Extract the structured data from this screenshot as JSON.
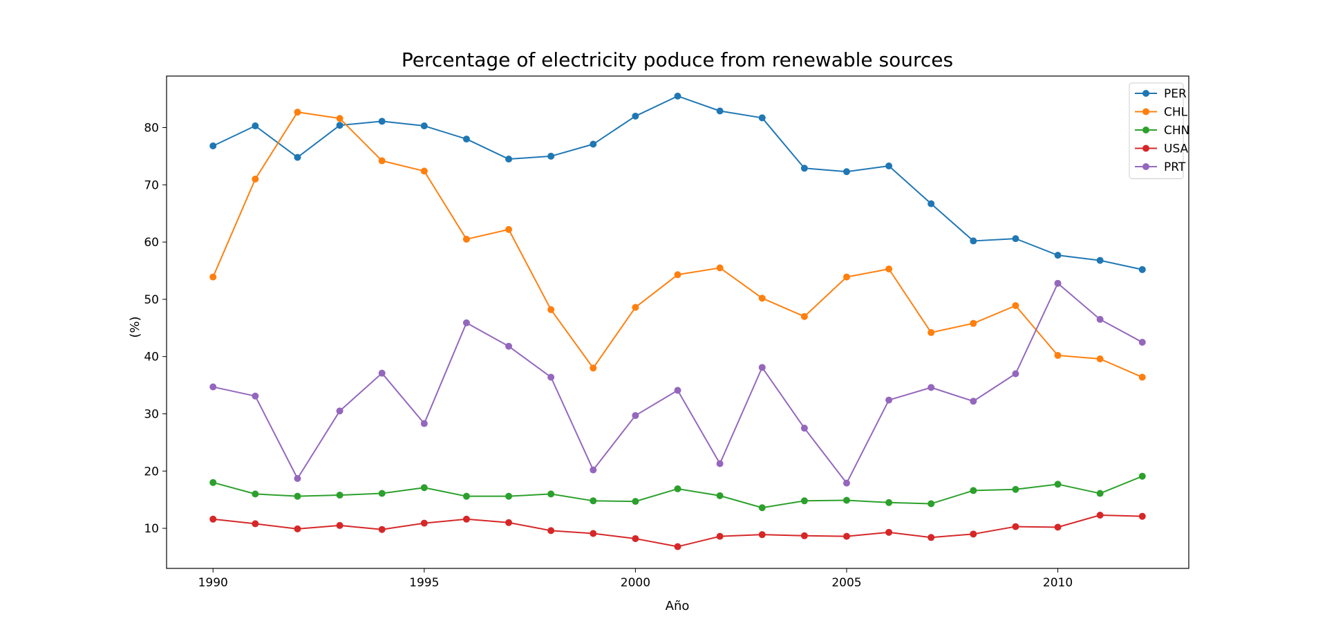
{
  "chart_data": {
    "type": "line",
    "title": "Percentage of electricity poduce from renewable sources",
    "xlabel": "Año",
    "ylabel": "(%)",
    "x": [
      1990,
      1991,
      1992,
      1993,
      1994,
      1995,
      1996,
      1997,
      1998,
      1999,
      2000,
      2001,
      2002,
      2003,
      2004,
      2005,
      2006,
      2007,
      2008,
      2009,
      2010,
      2011,
      2012
    ],
    "xlim": [
      1988.9,
      2013.1
    ],
    "ylim": [
      3.0,
      89.0
    ],
    "xticks": [
      1990,
      1995,
      2000,
      2005,
      2010
    ],
    "yticks": [
      10,
      20,
      30,
      40,
      50,
      60,
      70,
      80
    ],
    "grid": false,
    "legend_position": "top-right",
    "series": [
      {
        "name": "PER",
        "color": "#1f77b4",
        "values": [
          76.8,
          80.3,
          74.8,
          80.4,
          81.1,
          80.3,
          78.0,
          74.5,
          75.0,
          77.1,
          82.0,
          85.5,
          82.9,
          81.7,
          72.9,
          72.3,
          73.3,
          66.7,
          60.2,
          60.6,
          57.7,
          56.8,
          55.2
        ]
      },
      {
        "name": "CHL",
        "color": "#ff7f0e",
        "values": [
          53.9,
          71.0,
          82.7,
          81.6,
          74.2,
          72.4,
          60.5,
          62.2,
          48.2,
          38.0,
          48.6,
          54.3,
          55.5,
          50.2,
          47.0,
          53.9,
          55.3,
          44.2,
          45.8,
          48.9,
          40.2,
          39.6,
          36.4
        ]
      },
      {
        "name": "CHN",
        "color": "#2ca02c",
        "values": [
          18.0,
          16.0,
          15.6,
          15.8,
          16.1,
          17.1,
          15.6,
          15.6,
          16.0,
          14.8,
          14.7,
          16.9,
          15.7,
          13.6,
          14.8,
          14.9,
          14.5,
          14.3,
          16.6,
          16.8,
          17.7,
          16.1,
          19.1
        ]
      },
      {
        "name": "USA",
        "color": "#d62728",
        "values": [
          11.6,
          10.8,
          9.9,
          10.5,
          9.8,
          10.9,
          11.6,
          11.0,
          9.6,
          9.1,
          8.2,
          6.8,
          8.6,
          8.9,
          8.7,
          8.6,
          9.3,
          8.4,
          9.0,
          10.3,
          10.2,
          12.3,
          12.1
        ]
      },
      {
        "name": "PRT",
        "color": "#9467bd",
        "values": [
          34.7,
          33.1,
          18.7,
          30.5,
          37.1,
          28.3,
          45.9,
          41.8,
          36.4,
          20.2,
          29.7,
          34.1,
          21.3,
          38.1,
          27.5,
          17.9,
          32.4,
          34.6,
          32.2,
          37.0,
          52.8,
          46.5,
          42.5
        ]
      }
    ]
  }
}
